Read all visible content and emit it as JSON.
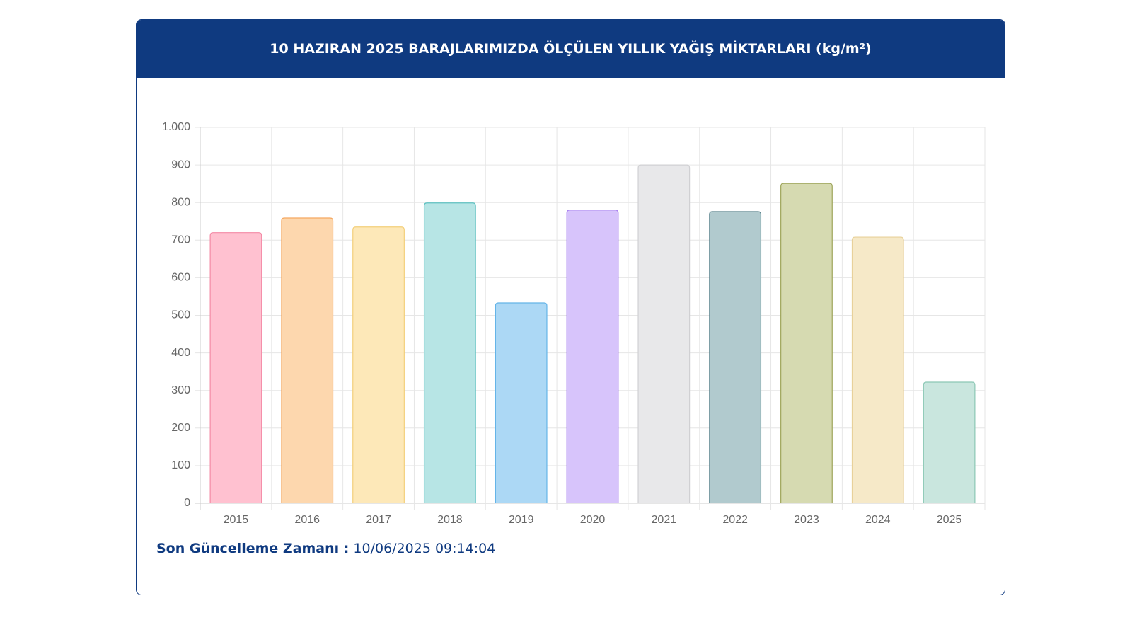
{
  "chart_data": {
    "type": "bar",
    "title": "10 HAZIRAN 2025 BARAJLARIMIZDA ÖLÇÜLEN YILLIK YAĞIŞ MİKTARLARI (kg/m²)",
    "categories": [
      "2015",
      "2016",
      "2017",
      "2018",
      "2019",
      "2020",
      "2021",
      "2022",
      "2023",
      "2024",
      "2025"
    ],
    "values": [
      720,
      759,
      735,
      799,
      533,
      780,
      900,
      776,
      851,
      708,
      322
    ],
    "colors": [
      "#ffc1d0",
      "#fdd7ae",
      "#fde8b8",
      "#b7e5e5",
      "#acd8f5",
      "#d7c4fb",
      "#e8e8ea",
      "#b1cace",
      "#d6dab1",
      "#f6e9c8",
      "#c9e6de"
    ],
    "border_colors": [
      "#f48aa5",
      "#f5a860",
      "#f3cf7a",
      "#5fc2c2",
      "#64b4e8",
      "#a67df0",
      "#d0d0d3",
      "#56808a",
      "#9ea55a",
      "#e8d19a",
      "#8cc8b5"
    ],
    "ylim": [
      0,
      1000
    ],
    "yticks": [
      0,
      100,
      200,
      300,
      400,
      500,
      600,
      700,
      800,
      900,
      {
        "value": 1000,
        "label": "1.000"
      }
    ],
    "grid": true
  },
  "footer": {
    "label": "Son Güncelleme Zamanı :",
    "timestamp": "10/06/2025 09:14:04"
  }
}
